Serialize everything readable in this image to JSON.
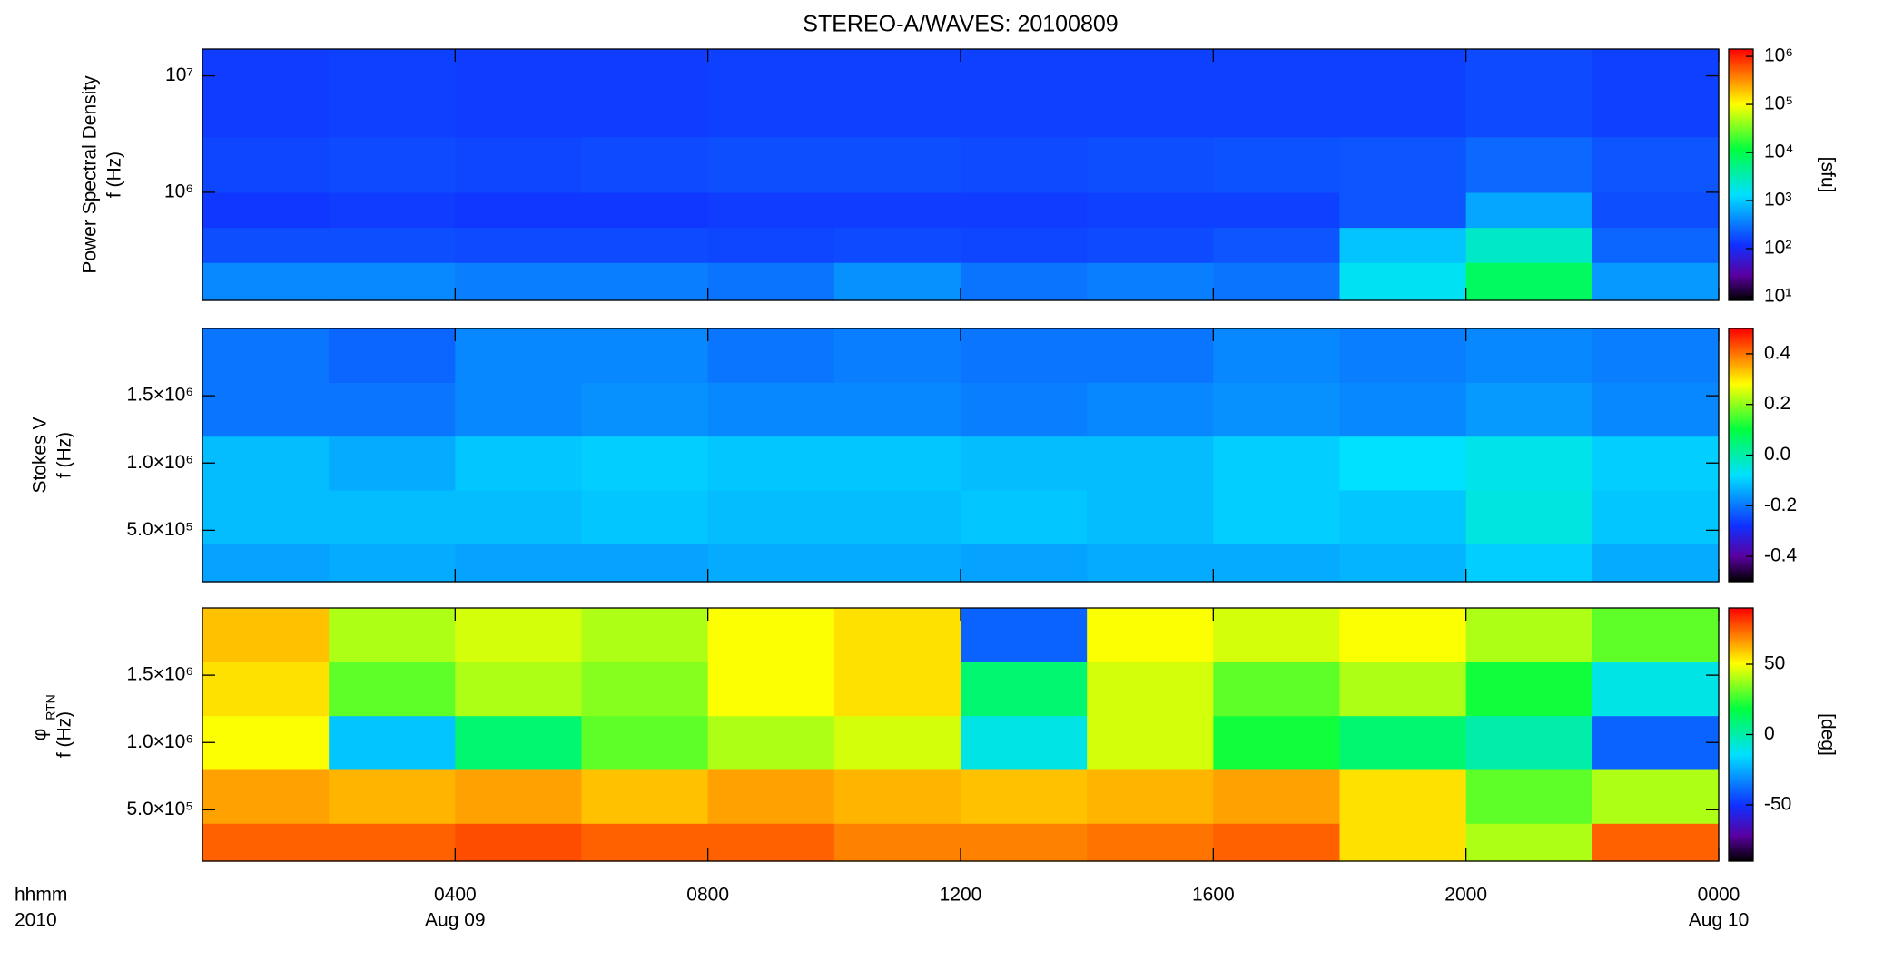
{
  "chart_data": [
    {
      "type": "heatmap",
      "title": "STEREO-A/WAVES: 20100809",
      "ylabel": [
        "Power Spectral Density",
        "f (Hz)"
      ],
      "cbar_label": "[sfu]",
      "yscale": "log",
      "ylim": [
        118000,
        17000000
      ],
      "yticks": [
        {
          "value": 1000000,
          "label": "10⁶"
        },
        {
          "value": 10000000,
          "label": "10⁷"
        }
      ],
      "xlim": [
        0,
        24
      ],
      "xbins": [
        0,
        2,
        4,
        6,
        8,
        10,
        12,
        14,
        16,
        18,
        20,
        22,
        24
      ],
      "ybins": [
        118000,
        250000,
        500000,
        1000000,
        3000000,
        17000000
      ],
      "zscale": "log",
      "zlim": [
        8.4,
        1420000
      ],
      "zticks": [
        {
          "value": 10,
          "label": "10¹"
        },
        {
          "value": 100,
          "label": "10²"
        },
        {
          "value": 1000,
          "label": "10³"
        },
        {
          "value": 10000,
          "label": "10⁴"
        },
        {
          "value": 100000,
          "label": "10⁵"
        },
        {
          "value": 1000000,
          "label": "10⁶"
        }
      ],
      "colorscale": [
        {
          "pos": 0,
          "color": "#000000"
        },
        {
          "pos": 0.1,
          "color": "#5a00a0"
        },
        {
          "pos": 0.22,
          "color": "#1030ff"
        },
        {
          "pos": 0.42,
          "color": "#00e0ff"
        },
        {
          "pos": 0.6,
          "color": "#00ff40"
        },
        {
          "pos": 0.78,
          "color": "#ffff00"
        },
        {
          "pos": 1,
          "color": "#ff0000"
        }
      ],
      "z": [
        [
          400,
          400,
          350,
          350,
          300,
          450,
          300,
          350,
          300,
          1500,
          8000,
          500
        ],
        [
          180,
          180,
          170,
          170,
          160,
          170,
          160,
          170,
          200,
          900,
          2500,
          250
        ],
        [
          130,
          140,
          130,
          130,
          140,
          140,
          140,
          150,
          150,
          200,
          600,
          180
        ],
        [
          160,
          170,
          160,
          170,
          180,
          180,
          170,
          180,
          190,
          200,
          260,
          200
        ],
        [
          140,
          150,
          140,
          140,
          150,
          150,
          150,
          150,
          150,
          150,
          170,
          150
        ]
      ]
    },
    {
      "type": "heatmap",
      "ylabel": [
        "Stokes V",
        "f (Hz)"
      ],
      "yscale": "linear",
      "ylim": [
        118000,
        2000000
      ],
      "yticks": [
        {
          "value": 500000,
          "label": "5.0×10⁵"
        },
        {
          "value": 1000000,
          "label": "1.0×10⁶"
        },
        {
          "value": 1500000,
          "label": "1.5×10⁶"
        }
      ],
      "xlim": [
        0,
        24
      ],
      "xbins": [
        0,
        2,
        4,
        6,
        8,
        10,
        12,
        14,
        16,
        18,
        20,
        22,
        24
      ],
      "ybins": [
        118000,
        400000,
        800000,
        1200000,
        1600000,
        2000000
      ],
      "zscale": "linear",
      "zlim": [
        -0.5,
        0.5
      ],
      "zticks": [
        -0.4,
        -0.2,
        {
          "value": 0,
          "label": "0.0"
        },
        0.2,
        0.4
      ],
      "colorscale": [
        {
          "pos": 0,
          "color": "#000000"
        },
        {
          "pos": 0.1,
          "color": "#5a00a0"
        },
        {
          "pos": 0.22,
          "color": "#1030ff"
        },
        {
          "pos": 0.42,
          "color": "#00e0ff"
        },
        {
          "pos": 0.6,
          "color": "#00ff40"
        },
        {
          "pos": 0.78,
          "color": "#ffff00"
        },
        {
          "pos": 1,
          "color": "#ff0000"
        }
      ],
      "z": [
        [
          -0.15,
          -0.14,
          -0.15,
          -0.15,
          -0.14,
          -0.14,
          -0.15,
          -0.14,
          -0.14,
          -0.13,
          -0.1,
          -0.14
        ],
        [
          -0.12,
          -0.12,
          -0.12,
          -0.11,
          -0.12,
          -0.12,
          -0.11,
          -0.12,
          -0.1,
          -0.11,
          -0.05,
          -0.11
        ],
        [
          -0.12,
          -0.14,
          -0.11,
          -0.1,
          -0.11,
          -0.11,
          -0.12,
          -0.12,
          -0.1,
          -0.08,
          -0.06,
          -0.1
        ],
        [
          -0.2,
          -0.2,
          -0.18,
          -0.17,
          -0.18,
          -0.18,
          -0.19,
          -0.18,
          -0.17,
          -0.18,
          -0.16,
          -0.18
        ],
        [
          -0.2,
          -0.22,
          -0.18,
          -0.18,
          -0.2,
          -0.19,
          -0.2,
          -0.2,
          -0.18,
          -0.19,
          -0.18,
          -0.19
        ]
      ]
    },
    {
      "type": "heatmap",
      "ylabel": [
        "φ",
        "f (Hz)"
      ],
      "ylabel_sub": "RTN",
      "cbar_label": "[deg]",
      "yscale": "linear",
      "ylim": [
        118000,
        2000000
      ],
      "yticks": [
        {
          "value": 500000,
          "label": "5.0×10⁵"
        },
        {
          "value": 1000000,
          "label": "1.0×10⁶"
        },
        {
          "value": 1500000,
          "label": "1.5×10⁶"
        }
      ],
      "xlim": [
        0,
        24
      ],
      "xbins": [
        0,
        2,
        4,
        6,
        8,
        10,
        12,
        14,
        16,
        18,
        20,
        22,
        24
      ],
      "xticks": [
        {
          "value": 4,
          "label": "0400"
        },
        {
          "value": 8,
          "label": "0800"
        },
        {
          "value": 12,
          "label": "1200"
        },
        {
          "value": 16,
          "label": "1600"
        },
        {
          "value": 20,
          "label": "2000"
        },
        {
          "value": 24,
          "label": "0000"
        }
      ],
      "xtick_sublabels": [
        {
          "value": 4,
          "label": "Aug 09"
        },
        {
          "value": 24,
          "label": "Aug 10"
        }
      ],
      "xlabel": [
        "hhmm",
        "2010"
      ],
      "ybins": [
        118000,
        400000,
        800000,
        1200000,
        1600000,
        2000000
      ],
      "zscale": "linear",
      "zlim": [
        -90,
        90
      ],
      "zticks": [
        -50,
        0,
        50
      ],
      "colorscale": [
        {
          "pos": 0,
          "color": "#000000"
        },
        {
          "pos": 0.1,
          "color": "#5a00a0"
        },
        {
          "pos": 0.22,
          "color": "#1030ff"
        },
        {
          "pos": 0.42,
          "color": "#00e0ff"
        },
        {
          "pos": 0.6,
          "color": "#00ff40"
        },
        {
          "pos": 0.78,
          "color": "#ffff00"
        },
        {
          "pos": 1,
          "color": "#ff0000"
        }
      ],
      "z": [
        [
          75,
          75,
          78,
          75,
          75,
          70,
          70,
          72,
          75,
          55,
          40,
          75
        ],
        [
          65,
          62,
          65,
          60,
          65,
          62,
          60,
          62,
          65,
          55,
          30,
          40
        ],
        [
          50,
          -20,
          10,
          30,
          40,
          45,
          -10,
          45,
          20,
          10,
          0,
          -40
        ],
        [
          55,
          30,
          40,
          35,
          50,
          55,
          10,
          45,
          30,
          40,
          20,
          -10
        ],
        [
          60,
          40,
          45,
          40,
          50,
          55,
          -40,
          50,
          45,
          50,
          40,
          30
        ]
      ]
    }
  ]
}
